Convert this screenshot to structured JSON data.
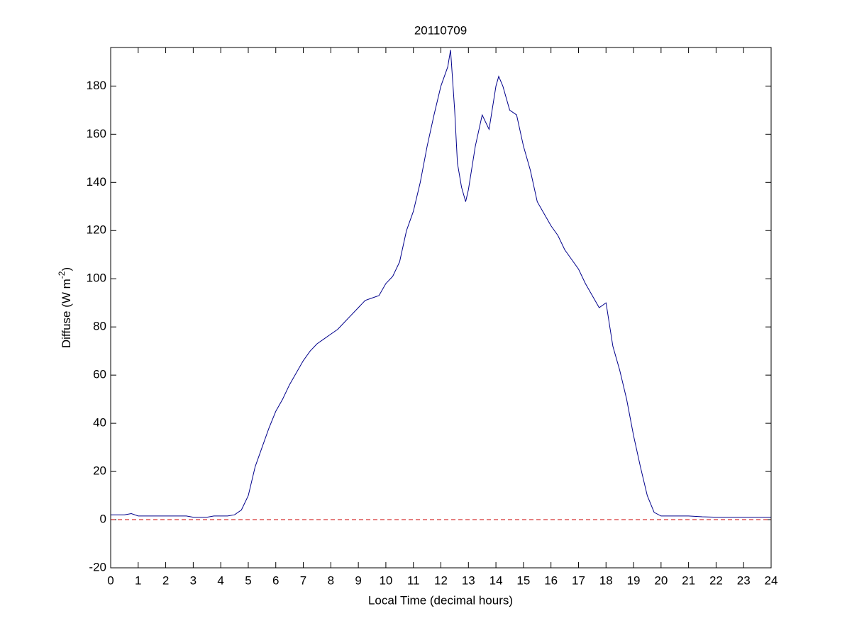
{
  "chart_data": {
    "type": "line",
    "title": "20110709",
    "xlabel": "Local Time (decimal hours)",
    "ylabel": {
      "text": "Diffuse (W m",
      "superscript": "-2",
      "suffix": ")"
    },
    "xlim": [
      0,
      24
    ],
    "ylim": [
      -20,
      196
    ],
    "xticks": [
      0,
      1,
      2,
      3,
      4,
      5,
      6,
      7,
      8,
      9,
      10,
      11,
      12,
      13,
      14,
      15,
      16,
      17,
      18,
      19,
      20,
      21,
      22,
      23,
      24
    ],
    "yticks": [
      -20,
      0,
      20,
      40,
      60,
      80,
      100,
      120,
      140,
      160,
      180
    ],
    "reference_line": {
      "y": 0,
      "color": "#cc0000"
    },
    "series": [
      {
        "color": "#00008b",
        "x": [
          0,
          0.25,
          0.5,
          0.75,
          1,
          1.25,
          1.5,
          1.75,
          2,
          2.25,
          2.5,
          2.75,
          3,
          3.25,
          3.5,
          3.75,
          4,
          4.25,
          4.5,
          4.75,
          5,
          5.25,
          5.5,
          5.75,
          6,
          6.25,
          6.5,
          6.75,
          7,
          7.25,
          7.5,
          7.75,
          8,
          8.25,
          8.5,
          8.75,
          9,
          9.25,
          9.5,
          9.75,
          10,
          10.25,
          10.5,
          10.75,
          11,
          11.25,
          11.5,
          11.75,
          12,
          12.25,
          12.35,
          12.5,
          12.6,
          12.75,
          12.9,
          13,
          13.25,
          13.5,
          13.75,
          14,
          14.1,
          14.25,
          14.5,
          14.75,
          15,
          15.25,
          15.5,
          15.75,
          16,
          16.25,
          16.5,
          16.75,
          17,
          17.25,
          17.5,
          17.75,
          18,
          18.25,
          18.5,
          18.75,
          19,
          19.25,
          19.5,
          19.75,
          20,
          20.5,
          21,
          21.5,
          22,
          22.5,
          23,
          23.5,
          24
        ],
        "values": [
          2,
          2,
          2,
          2.5,
          1.5,
          1.5,
          1.5,
          1.5,
          1.5,
          1.5,
          1.5,
          1.5,
          1,
          1,
          1,
          1.5,
          1.5,
          1.5,
          2,
          4,
          10,
          22,
          30,
          38,
          45,
          50,
          56,
          61,
          66,
          70,
          73,
          75,
          77,
          79,
          82,
          85,
          88,
          91,
          92,
          93,
          98,
          101,
          107,
          120,
          128,
          140,
          155,
          168,
          180,
          188,
          195,
          170,
          148,
          138,
          132,
          137,
          155,
          168,
          162,
          180,
          184,
          180,
          170,
          168,
          155,
          145,
          132,
          127,
          122,
          118,
          112,
          108,
          104,
          98,
          93,
          88,
          90,
          72,
          62,
          50,
          35,
          22,
          10,
          3,
          1.5,
          1.5,
          1.5,
          1.2,
          1,
          1,
          1,
          1,
          1
        ]
      }
    ]
  }
}
